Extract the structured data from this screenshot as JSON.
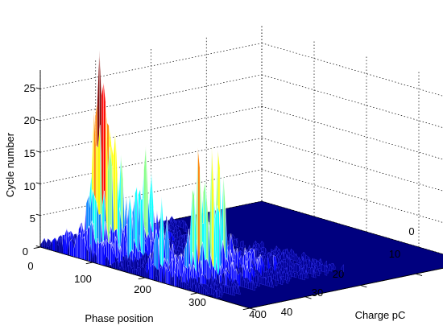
{
  "chart_data": {
    "type": "surface-3d",
    "title": "",
    "x_axis": {
      "label": "Phase position",
      "ticks": [
        "0",
        "100",
        "200",
        "300",
        "400"
      ],
      "range": [
        0,
        400
      ]
    },
    "y_axis": {
      "label": "Charge pC",
      "ticks": [
        "0",
        "10",
        "20",
        "30",
        "40"
      ],
      "range": [
        0,
        40
      ]
    },
    "z_axis": {
      "label": "Cycle number",
      "ticks": [
        "0",
        "5",
        "10",
        "15",
        "20",
        "25"
      ],
      "range": [
        0,
        28
      ]
    },
    "colormap": [
      "#00008f",
      "#0000ff",
      "#0080ff",
      "#00ffff",
      "#80ff80",
      "#ffff00",
      "#ff8000",
      "#ff0000",
      "#800000"
    ],
    "base_color": "#00007f",
    "grid": true,
    "peaks": [
      {
        "phase": 60,
        "charge": 5,
        "cycles": 28
      },
      {
        "phase": 70,
        "charge": 5,
        "cycles": 24
      },
      {
        "phase": 50,
        "charge": 6,
        "cycles": 22
      },
      {
        "phase": 80,
        "charge": 6,
        "cycles": 17
      },
      {
        "phase": 95,
        "charge": 10,
        "cycles": 14
      },
      {
        "phase": 250,
        "charge": 5,
        "cycles": 20
      },
      {
        "phase": 245,
        "charge": 9,
        "cycles": 18
      },
      {
        "phase": 265,
        "charge": 6,
        "cycles": 17
      },
      {
        "phase": 220,
        "charge": 8,
        "cycles": 15
      },
      {
        "phase": 130,
        "charge": 5,
        "cycles": 11
      },
      {
        "phase": 200,
        "charge": 3,
        "cycles": 10
      }
    ]
  }
}
